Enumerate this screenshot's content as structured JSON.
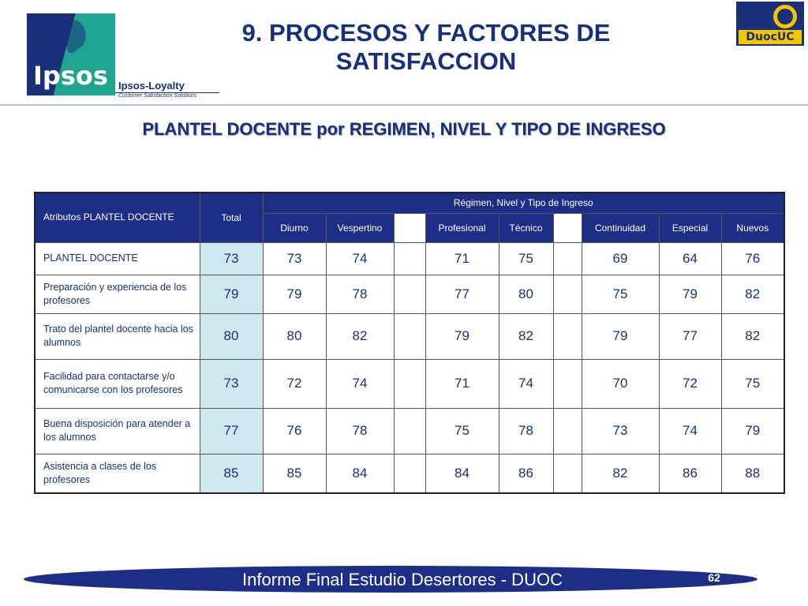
{
  "header": {
    "logo_text": "Ipsos",
    "loyalty_name": "Ipsos-Loyalty",
    "loyalty_tagline": "Customer Satisfaction Solutions",
    "title_line1": "9. PROCESOS Y FACTORES DE",
    "title_line2": "SATISFACCION",
    "right_logo_text": "DuocUC"
  },
  "subtitle": "PLANTEL DOCENTE por REGIMEN, NIVEL Y TIPO DE INGRESO",
  "table": {
    "attr_header": "Atributos PLANTEL DOCENTE",
    "total_header": "Total",
    "group_header": "Régimen, Nivel y Tipo de Ingreso",
    "columns": [
      "Diurno",
      "Vespertino",
      "Profesional",
      "Técnico",
      "Continuidad",
      "Especial",
      "Nuevos"
    ],
    "rows": [
      {
        "label": "PLANTEL DOCENTE",
        "total": "73",
        "values": [
          "73",
          "74",
          "71",
          "75",
          "69",
          "64",
          "76"
        ]
      },
      {
        "label": "Preparación y experiencia de los profesores",
        "total": "79",
        "values": [
          "79",
          "78",
          "77",
          "80",
          "75",
          "79",
          "82"
        ]
      },
      {
        "label": "Trato del plantel docente hacia los alumnos",
        "total": "80",
        "values": [
          "80",
          "82",
          "79",
          "82",
          "79",
          "77",
          "82"
        ]
      },
      {
        "label": "Facilidad para contactarse y/o comunicarse con los profesores",
        "total": "73",
        "values": [
          "72",
          "74",
          "71",
          "74",
          "70",
          "72",
          "75"
        ]
      },
      {
        "label": "Buena disposición para atender a los alumnos",
        "total": "77",
        "values": [
          "76",
          "78",
          "75",
          "78",
          "73",
          "74",
          "79"
        ]
      },
      {
        "label": "Asistencia a clases de los profesores",
        "total": "85",
        "values": [
          "85",
          "84",
          "84",
          "86",
          "82",
          "86",
          "88"
        ]
      }
    ]
  },
  "footer": {
    "text": "Informe Final Estudio Desertores - DUOC",
    "page": "62"
  },
  "colors": {
    "navy": "#1e2e86",
    "total_bg": "#cfe7ee",
    "title": "#1a2f7a"
  }
}
